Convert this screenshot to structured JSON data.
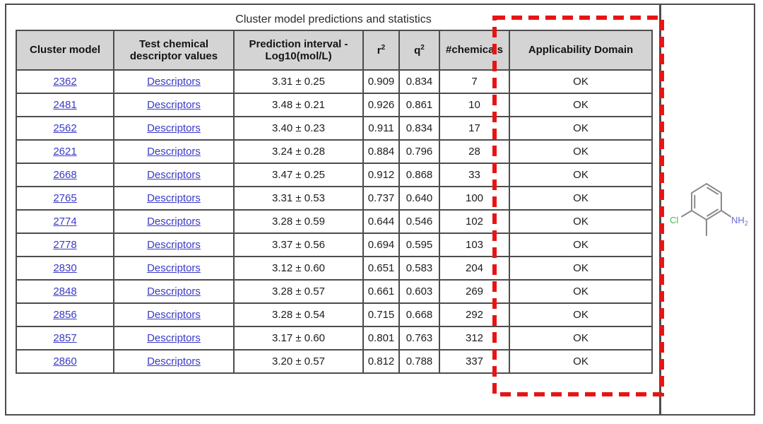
{
  "colors": {
    "accent_red": "#e81414",
    "link_blue": "#3a3ac8",
    "header_bg": "#d4d4d4",
    "table_border": "#4d4d4d",
    "text": "#1c1c1c",
    "bond_gray": "#8a8a8a",
    "chlorine_green": "#46b946",
    "amine_blue": "#6a6ada"
  },
  "title": "Cluster model predictions and statistics",
  "table": {
    "headers": [
      {
        "key": "cluster-model",
        "label": "Cluster model"
      },
      {
        "key": "descriptor-values",
        "label": "Test chemical descriptor values"
      },
      {
        "key": "prediction-interval",
        "label": "Prediction interval -Log10(mol/L)"
      },
      {
        "key": "r2",
        "label": "r",
        "sup": "2"
      },
      {
        "key": "q2",
        "label": "q",
        "sup": "2"
      },
      {
        "key": "chemicals",
        "label": "#chemicals"
      },
      {
        "key": "applicability-domain",
        "label": "Applicability Domain"
      }
    ],
    "rows": [
      {
        "model": "2362",
        "descriptors": "Descriptors",
        "prediction": "3.31 ± 0.25",
        "r2": "0.909",
        "q2": "0.834",
        "chemicals": "7",
        "domain": "OK"
      },
      {
        "model": "2481",
        "descriptors": "Descriptors",
        "prediction": "3.48 ± 0.21",
        "r2": "0.926",
        "q2": "0.861",
        "chemicals": "10",
        "domain": "OK"
      },
      {
        "model": "2562",
        "descriptors": "Descriptors",
        "prediction": "3.40 ± 0.23",
        "r2": "0.911",
        "q2": "0.834",
        "chemicals": "17",
        "domain": "OK"
      },
      {
        "model": "2621",
        "descriptors": "Descriptors",
        "prediction": "3.24 ± 0.28",
        "r2": "0.884",
        "q2": "0.796",
        "chemicals": "28",
        "domain": "OK"
      },
      {
        "model": "2668",
        "descriptors": "Descriptors",
        "prediction": "3.47 ± 0.25",
        "r2": "0.912",
        "q2": "0.868",
        "chemicals": "33",
        "domain": "OK"
      },
      {
        "model": "2765",
        "descriptors": "Descriptors",
        "prediction": "3.31 ± 0.53",
        "r2": "0.737",
        "q2": "0.640",
        "chemicals": "100",
        "domain": "OK"
      },
      {
        "model": "2774",
        "descriptors": "Descriptors",
        "prediction": "3.28 ± 0.59",
        "r2": "0.644",
        "q2": "0.546",
        "chemicals": "102",
        "domain": "OK"
      },
      {
        "model": "2778",
        "descriptors": "Descriptors",
        "prediction": "3.37 ± 0.56",
        "r2": "0.694",
        "q2": "0.595",
        "chemicals": "103",
        "domain": "OK"
      },
      {
        "model": "2830",
        "descriptors": "Descriptors",
        "prediction": "3.12 ± 0.60",
        "r2": "0.651",
        "q2": "0.583",
        "chemicals": "204",
        "domain": "OK"
      },
      {
        "model": "2848",
        "descriptors": "Descriptors",
        "prediction": "3.28 ± 0.57",
        "r2": "0.661",
        "q2": "0.603",
        "chemicals": "269",
        "domain": "OK"
      },
      {
        "model": "2856",
        "descriptors": "Descriptors",
        "prediction": "3.28 ± 0.54",
        "r2": "0.715",
        "q2": "0.668",
        "chemicals": "292",
        "domain": "OK"
      },
      {
        "model": "2857",
        "descriptors": "Descriptors",
        "prediction": "3.17 ± 0.60",
        "r2": "0.801",
        "q2": "0.763",
        "chemicals": "312",
        "domain": "OK"
      },
      {
        "model": "2860",
        "descriptors": "Descriptors",
        "prediction": "3.20 ± 0.57",
        "r2": "0.812",
        "q2": "0.788",
        "chemicals": "337",
        "domain": "OK"
      }
    ]
  },
  "annotation": {
    "type": "dashed-rectangle",
    "color": "#e81414",
    "highlights": "Applicability Domain"
  },
  "structure": {
    "chlorine_label": "Cl",
    "amine_label": "NH",
    "amine_subscript": "2"
  }
}
